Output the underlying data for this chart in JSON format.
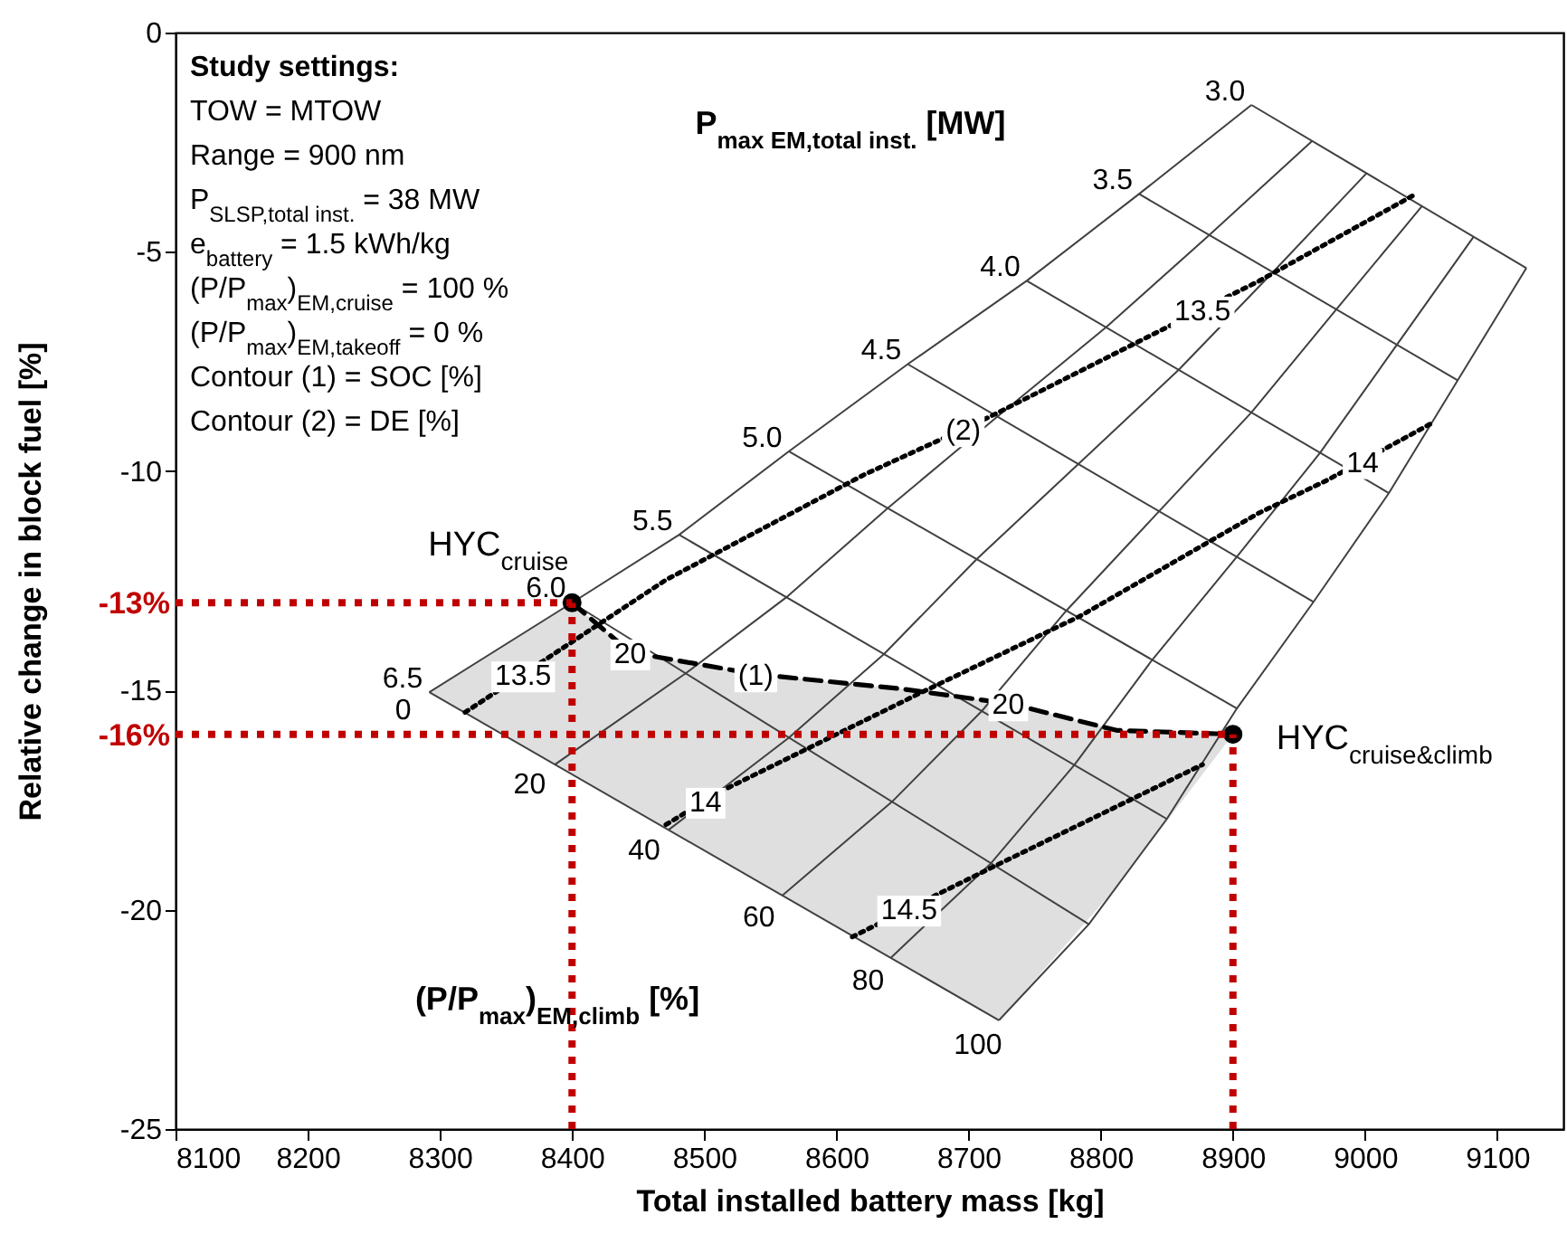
{
  "chart_data": {
    "type": "line",
    "xlabel": "Total installed battery mass [kg]",
    "ylabel": "Relative change in block fuel [%]",
    "xlim": [
      8100,
      9150
    ],
    "xticks": [
      8100,
      8200,
      8300,
      8400,
      8500,
      8600,
      8700,
      8800,
      8900,
      9000,
      9100
    ],
    "ylim": [
      -25,
      0
    ],
    "yticks": [
      0,
      -5,
      -10,
      -15,
      -20,
      -25
    ],
    "series": [
      {
        "name": "3.0",
        "color": "#404040",
        "x": [
          8914,
          9122
        ],
        "values": [
          -1.65,
          -5.37
        ]
      },
      {
        "name": "3.5",
        "color": "#404040",
        "x": [
          8829,
          9070
        ],
        "values": [
          -3.68,
          -7.93
        ]
      },
      {
        "name": "4.0",
        "color": "#404040",
        "x": [
          8744,
          9018
        ],
        "values": [
          -5.66,
          -10.5
        ]
      },
      {
        "name": "4.5",
        "color": "#404040",
        "x": [
          8654,
          8961
        ],
        "values": [
          -7.56,
          -12.98
        ]
      },
      {
        "name": "5.0",
        "color": "#404040",
        "x": [
          8564,
          8903
        ],
        "values": [
          -9.55,
          -15.41
        ]
      },
      {
        "name": "5.5",
        "color": "#404040",
        "x": [
          8481,
          8850
        ],
        "values": [
          -11.45,
          -17.93
        ]
      },
      {
        "name": "6.0",
        "color": "#404040",
        "x": [
          8400,
          8791
        ],
        "values": [
          -13,
          -20.33
        ]
      },
      {
        "name": "6.5",
        "color": "#404040",
        "x": [
          8292,
          8723
        ],
        "values": [
          -15.04,
          -22.52
        ]
      },
      {
        "name": "0",
        "color": "#404040",
        "x": [
          8292,
          8400,
          8481,
          8564,
          8654,
          8744,
          8829,
          8914
        ],
        "values": [
          -15.04,
          -13,
          -11.45,
          -9.55,
          -7.56,
          -5.66,
          -3.68,
          -1.65
        ]
      },
      {
        "name": "20",
        "color": "#404040",
        "x": [
          8387,
          8486,
          8562,
          8639,
          8722,
          8804,
          8882,
          8960
        ],
        "values": [
          -16.69,
          -14.61,
          -12.88,
          -10.84,
          -8.75,
          -6.72,
          -4.62,
          -2.47
        ]
      },
      {
        "name": "40",
        "color": "#404040",
        "x": [
          8473,
          8564,
          8636,
          8706,
          8783,
          8859,
          8930,
          9001
        ],
        "values": [
          -18.18,
          -16.08,
          -14.17,
          -12.01,
          -9.84,
          -7.69,
          -5.47,
          -3.21
        ]
      },
      {
        "name": "60",
        "color": "#404040",
        "x": [
          8559,
          8642,
          8710,
          8774,
          8844,
          8914,
          8978,
          9043
        ],
        "values": [
          -19.68,
          -17.54,
          -15.47,
          -13.18,
          -10.92,
          -8.66,
          -6.32,
          -3.96
        ]
      },
      {
        "name": "80",
        "color": "#404040",
        "x": [
          8641,
          8717,
          8780,
          8839,
          8903,
          8966,
          9024,
          9082
        ],
        "values": [
          -21.1,
          -18.94,
          -16.7,
          -14.3,
          -11.95,
          -9.58,
          -7.12,
          -4.66
        ]
      },
      {
        "name": "100",
        "color": "#404040",
        "x": [
          8723,
          8791,
          8850,
          8903,
          8961,
          9018,
          9070,
          9122
        ],
        "values": [
          -22.52,
          -20.33,
          -17.93,
          -15.41,
          -12.98,
          -10.5,
          -7.93,
          -5.37
        ]
      },
      {
        "color": "#000000",
        "line_style": "dashed",
        "x": [
          8292,
          8400,
          8444,
          8539,
          8648,
          8723,
          8730,
          8812,
          8900
        ],
        "values": [
          null,
          -13,
          -14.13,
          -14.63,
          -14.96,
          -15.27,
          -15.29,
          -15.91,
          -16
        ],
        "upper": [
          -15.04,
          -13,
          -14.13,
          -14.63,
          -14.96,
          -15.27,
          -15.29,
          -15.91,
          -16
        ],
        "lower": [
          -15.04,
          -16.91,
          -17.68,
          -19.33,
          -21.22,
          -22.52,
          -22.29,
          -19.48,
          -16
        ]
      },
      {
        "color": "#000000",
        "line_style": "dotted",
        "x": [
          8319,
          8363,
          8471,
          8621,
          8696,
          8716,
          8877,
          8920,
          9036
        ],
        "values": [
          -15.5,
          -14.63,
          -12.48,
          -10.08,
          -9.04,
          -8.76,
          -6.31,
          -5.66,
          -3.72
        ]
      },
      {
        "color": "#000000",
        "line_style": "dotted",
        "x": [
          8471,
          8501,
          8512,
          8662,
          8784,
          8920,
          8971,
          8998,
          9052
        ],
        "values": [
          -18.06,
          -17.51,
          -17.31,
          -15.08,
          -13.31,
          -10.95,
          -10.21,
          -9.77,
          -8.88
        ]
      },
      {
        "color": "#000000",
        "line_style": "dotted",
        "x": [
          8612,
          8655,
          8714,
          8877
        ],
        "values": [
          -20.62,
          -19.97,
          -19.09,
          -16.69
        ]
      },
      {
        "type": "scatter",
        "marker": "circle",
        "name": "HYC$_{cruise}$",
        "color": "#000000",
        "x": [
          8400
        ],
        "values": [
          -13
        ]
      },
      {
        "type": "scatter",
        "marker": "circle",
        "name": "HYC$_{cruise&climb}$",
        "color": "#000000",
        "x": [
          8900
        ],
        "values": [
          -16
        ]
      }
    ],
    "ref_lines": [
      {
        "axis": "y",
        "value": -13,
        "label": "-13%",
        "color": "#c00000",
        "line_style": "dotted"
      },
      {
        "axis": "x",
        "value": 8400,
        "color": "#c00000",
        "line_style": "dotted"
      },
      {
        "axis": "y",
        "value": -16,
        "label": "-16%",
        "color": "#c00000",
        "line_style": "dotted"
      },
      {
        "axis": "x",
        "value": 8900,
        "color": "#c00000",
        "line_style": "dotted"
      }
    ],
    "annotations": [
      "Study settings:",
      "TOW = MTOW",
      "Range = 900 nm",
      "P$_{SLSP,total inst.}$ = 38 MW",
      "e$_{battery}$ = 1.5 kWh/kg",
      "(P/P$_{max}$)$_{EM,cruise}$ = 100 %",
      "(P/P$_{max}$)$_{EM,takeoff}$ = 0 %",
      "Contour (1) = SOC [%]",
      "Contour (2) = DE [%]",
      "P$_{max EM,total inst.}$ [MW]",
      "(P/P$_{max}$)$_{EM,climb}$ [%]",
      {
        "text": "20",
        "x": 8444,
        "y": -14.13
      },
      {
        "text": "(1)",
        "x": 8539,
        "y": -14.63
      },
      {
        "text": "20",
        "x": 8730,
        "y": -15.29
      },
      {
        "text": "13.5",
        "x": 8363,
        "y": -14.63
      },
      {
        "text": "(2)",
        "x": 8696,
        "y": -9.04
      },
      {
        "text": "13.5",
        "x": 8877,
        "y": -6.31
      },
      {
        "text": "14",
        "x": 8501,
        "y": -17.51
      },
      {
        "text": "14",
        "x": 8998,
        "y": -9.77
      },
      {
        "text": "14.5",
        "x": 8655,
        "y": -19.97
      }
    ]
  }
}
